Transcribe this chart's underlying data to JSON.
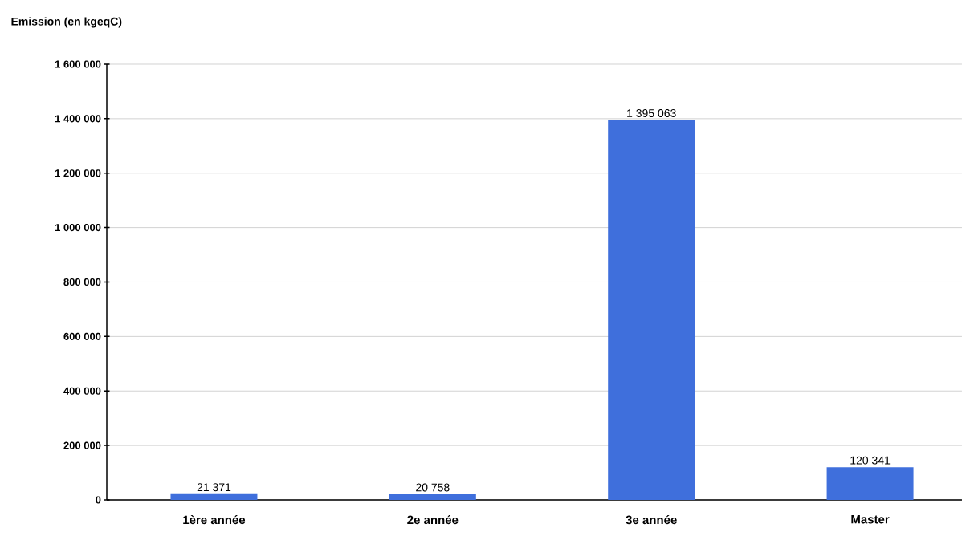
{
  "chart_data": {
    "type": "bar",
    "ylabel": "Emission (en kgeqC)",
    "categories": [
      "1ère année",
      "2e année",
      "3e année",
      "Master"
    ],
    "values": [
      21371,
      20758,
      1395063,
      120341
    ],
    "value_labels": [
      "21 371",
      "20 758",
      "1 395 063",
      "120 341"
    ],
    "color": "#3f6fdc",
    "ylim": [
      0,
      1600000
    ],
    "yticks": [
      0,
      {
        "value": 200000,
        "label": "200 000"
      },
      {
        "value": 400000,
        "label": "400 000"
      },
      {
        "value": 600000,
        "label": "600 000"
      },
      {
        "value": 800000,
        "label": "800 000"
      },
      {
        "value": 1000000,
        "label": "1 000 000"
      },
      {
        "value": 1200000,
        "label": "1 200 000"
      },
      {
        "value": 1400000,
        "label": "1 400 000"
      },
      {
        "value": 1600000,
        "label": "1 600 000"
      }
    ],
    "grid": "y"
  }
}
